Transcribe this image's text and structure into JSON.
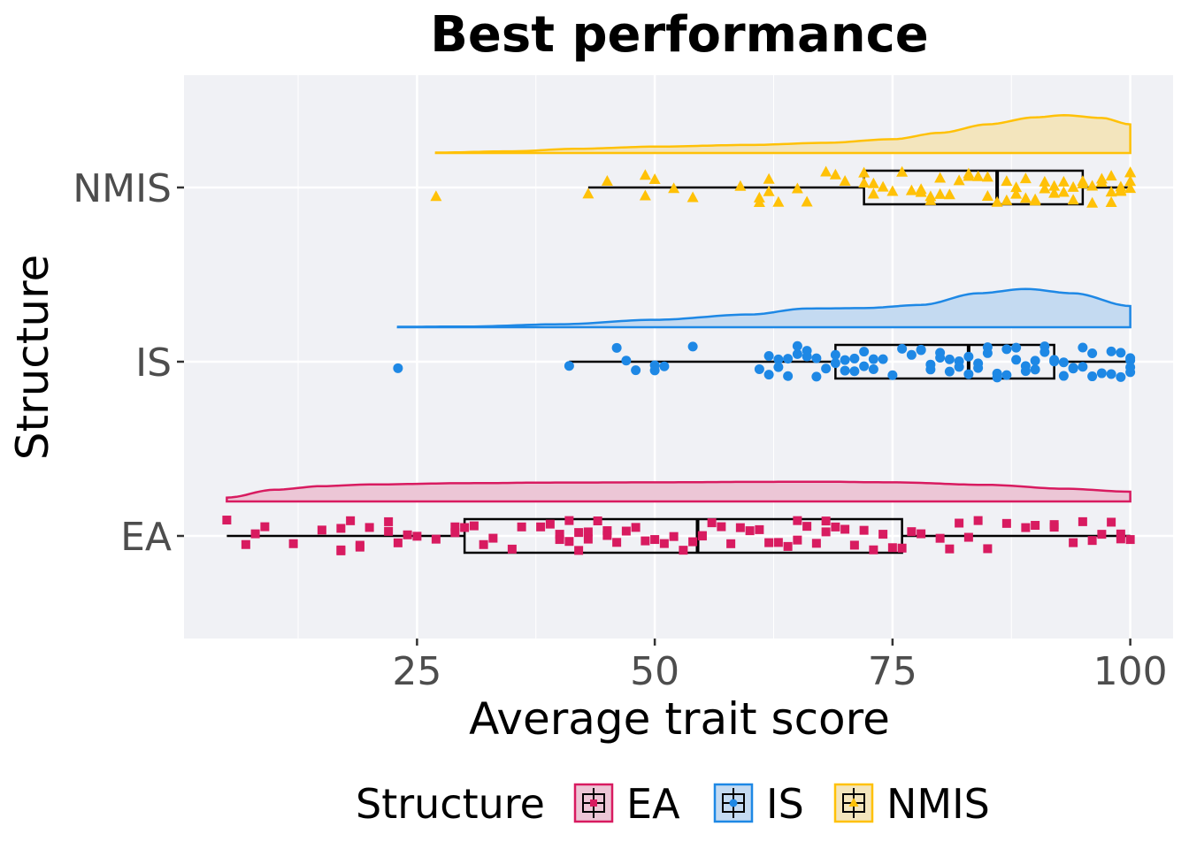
{
  "chart_data": {
    "type": "raincloud",
    "title": "Best performance",
    "xlabel": "Average trait score",
    "ylabel": "Structure",
    "xlim": [
      0.5,
      104.5
    ],
    "x_ticks": [
      25,
      50,
      75,
      100
    ],
    "x_tick_labels": [
      "25",
      "50",
      "75",
      "100"
    ],
    "grid": true,
    "legend": {
      "title": "Structure",
      "position": "bottom",
      "entries": [
        "EA",
        "IS",
        "NMIS"
      ]
    },
    "series": [
      {
        "name": "EA",
        "color": "#d81b60",
        "fill": "#ecc6d6",
        "marker": "square",
        "box": {
          "min": 5,
          "q1": 30,
          "median": 54.5,
          "q3": 76,
          "max": 100
        },
        "density": [
          [
            5,
            0.18
          ],
          [
            10,
            0.55
          ],
          [
            15,
            0.72
          ],
          [
            20,
            0.8
          ],
          [
            30,
            0.86
          ],
          [
            40,
            0.89
          ],
          [
            50,
            0.9
          ],
          [
            60,
            0.92
          ],
          [
            67,
            0.93
          ],
          [
            75,
            0.9
          ],
          [
            85,
            0.78
          ],
          [
            93,
            0.6
          ],
          [
            100,
            0.46
          ]
        ],
        "points": [
          5,
          7,
          8,
          9,
          12,
          15,
          17,
          17,
          17,
          18,
          19,
          19,
          20,
          22,
          22,
          23,
          24,
          25,
          27,
          29,
          29,
          30,
          31,
          32,
          33,
          35,
          36,
          38,
          39,
          40,
          40,
          41,
          41,
          42,
          42,
          43,
          43,
          44,
          45,
          45,
          46,
          47,
          48,
          49,
          50,
          51,
          52,
          53,
          54,
          55,
          55,
          56,
          57,
          58,
          59,
          60,
          61,
          62,
          63,
          64,
          65,
          65,
          66,
          67,
          68,
          68,
          69,
          70,
          71,
          72,
          73,
          74,
          75,
          76,
          77,
          78,
          80,
          81,
          82,
          83,
          84,
          85,
          87,
          89,
          90,
          92,
          92,
          94,
          95,
          96,
          97,
          98,
          99,
          99,
          100
        ]
      },
      {
        "name": "IS",
        "color": "#1e88e5",
        "fill": "#c4daf1",
        "marker": "circle",
        "box": {
          "min": 41,
          "q1": 69,
          "median": 83,
          "q3": 92,
          "max": 100
        },
        "density": [
          [
            23,
            0.02
          ],
          [
            30,
            0.03
          ],
          [
            40,
            0.14
          ],
          [
            50,
            0.35
          ],
          [
            60,
            0.6
          ],
          [
            66,
            0.88
          ],
          [
            72,
            0.9
          ],
          [
            78,
            1.05
          ],
          [
            84,
            1.6
          ],
          [
            89,
            1.8
          ],
          [
            94,
            1.6
          ],
          [
            100,
            1.0
          ]
        ],
        "points": [
          23,
          41,
          46,
          47,
          48,
          50,
          50,
          51,
          54,
          61,
          62,
          62,
          63,
          63,
          64,
          64,
          65,
          65,
          66,
          66,
          67,
          67,
          68,
          69,
          69,
          70,
          70,
          71,
          71,
          72,
          72,
          73,
          73,
          74,
          75,
          76,
          77,
          78,
          78,
          79,
          79,
          80,
          80,
          81,
          81,
          82,
          82,
          83,
          83,
          84,
          84,
          85,
          85,
          86,
          86,
          87,
          87,
          88,
          88,
          89,
          89,
          90,
          90,
          91,
          91,
          92,
          92,
          93,
          93,
          94,
          94,
          95,
          95,
          96,
          96,
          97,
          98,
          98,
          99,
          99,
          100,
          100,
          100,
          100
        ]
      },
      {
        "name": "NMIS",
        "color": "#ffc107",
        "fill": "#f3e5bd",
        "marker": "triangle",
        "box": {
          "min": 43,
          "q1": 72,
          "median": 86,
          "q3": 95,
          "max": 100
        },
        "density": [
          [
            27,
            0.02
          ],
          [
            35,
            0.08
          ],
          [
            42,
            0.2
          ],
          [
            50,
            0.3
          ],
          [
            60,
            0.38
          ],
          [
            68,
            0.48
          ],
          [
            75,
            0.65
          ],
          [
            80,
            0.95
          ],
          [
            85,
            1.35
          ],
          [
            90,
            1.68
          ],
          [
            93,
            1.78
          ],
          [
            97,
            1.65
          ],
          [
            100,
            1.35
          ]
        ],
        "points": [
          27,
          43,
          45,
          49,
          49,
          50,
          52,
          54,
          59,
          61,
          61,
          62,
          62,
          63,
          65,
          66,
          68,
          69,
          70,
          72,
          72,
          73,
          73,
          74,
          75,
          76,
          77,
          78,
          78,
          79,
          79,
          80,
          80,
          81,
          82,
          83,
          83,
          84,
          85,
          85,
          86,
          87,
          87,
          88,
          88,
          89,
          89,
          90,
          90,
          91,
          91,
          92,
          92,
          93,
          93,
          94,
          94,
          95,
          95,
          96,
          96,
          97,
          97,
          98,
          98,
          98,
          99,
          99,
          99,
          100,
          100,
          100,
          100
        ]
      }
    ]
  }
}
